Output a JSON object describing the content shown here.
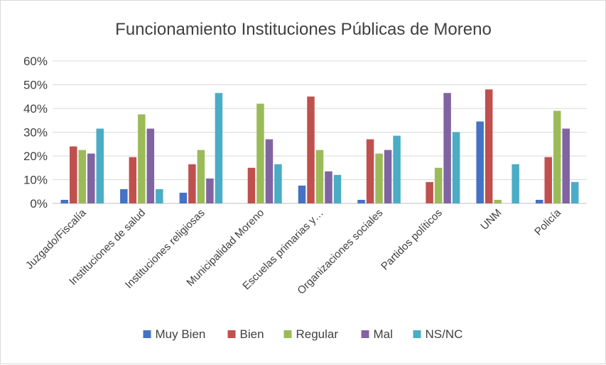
{
  "chart_data": {
    "type": "bar",
    "title": "Funcionamiento Instituciones Públicas de Moreno",
    "xlabel": "",
    "ylabel": "",
    "ylim": [
      0,
      60
    ],
    "yticks": [
      "0%",
      "10%",
      "20%",
      "30%",
      "40%",
      "50%",
      "60%"
    ],
    "grid": true,
    "legend_position": "bottom",
    "categories": [
      "Juzgado/Fiscalía",
      "Instituciones de salud",
      "Instituciones religiosas",
      "Municipalidad Moreno",
      "Escuelas primarias y…",
      "Organizaciones sociales",
      "Partidos políticos",
      "UNM",
      "Policía"
    ],
    "series": [
      {
        "name": "Muy Bien",
        "color": "#4472c4",
        "values": [
          1.5,
          6,
          4.5,
          0,
          7.5,
          1.5,
          0,
          34.5,
          1.5
        ]
      },
      {
        "name": "Bien",
        "color": "#c0504d",
        "values": [
          24,
          19.5,
          16.5,
          15,
          45,
          27,
          9,
          48,
          19.5
        ]
      },
      {
        "name": "Regular",
        "color": "#9bbb59",
        "values": [
          22.5,
          37.5,
          22.5,
          42,
          22.5,
          21,
          15,
          1.5,
          39
        ]
      },
      {
        "name": "Mal",
        "color": "#8064a2",
        "values": [
          21,
          31.5,
          10.5,
          27,
          13.5,
          22.5,
          46.5,
          0,
          31.5
        ]
      },
      {
        "name": "NS/NC",
        "color": "#4bacc6",
        "values": [
          31.5,
          6,
          46.5,
          16.5,
          12,
          28.5,
          30,
          16.5,
          9
        ]
      }
    ]
  }
}
